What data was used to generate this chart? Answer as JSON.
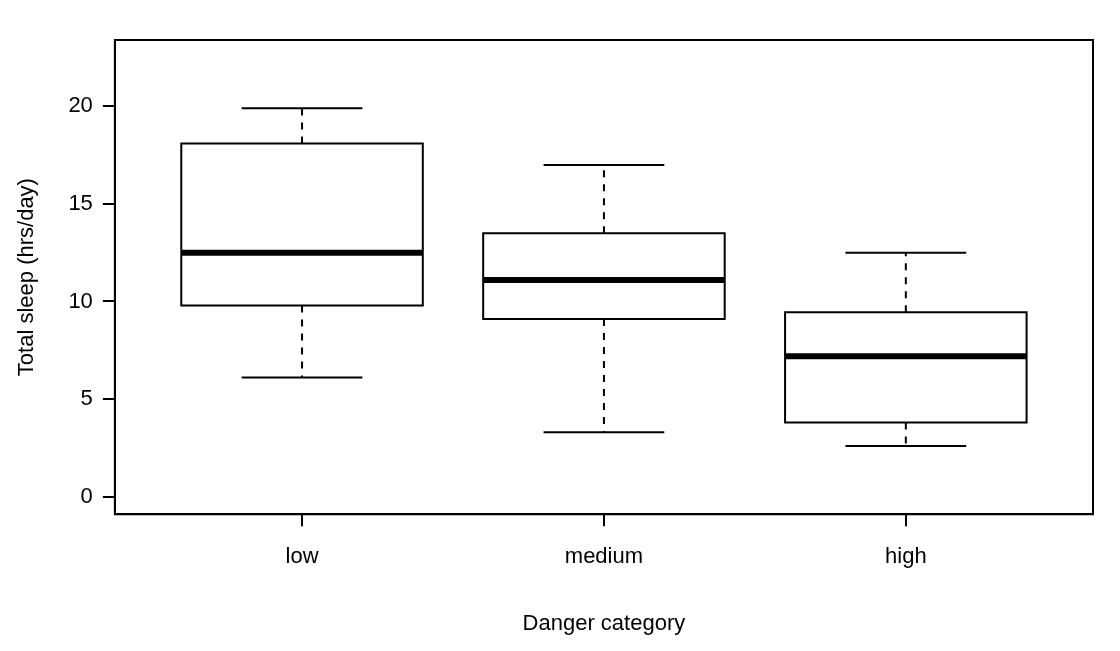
{
  "chart_data": {
    "type": "box",
    "xlabel": "Danger category",
    "ylabel": "Total sleep (hrs/day)",
    "categories": [
      "low",
      "medium",
      "high"
    ],
    "boxes": [
      {
        "low": 6.1,
        "q1": 9.8,
        "median": 12.5,
        "q3": 18.1,
        "high": 19.9
      },
      {
        "low": 3.3,
        "q1": 9.1,
        "median": 11.1,
        "q3": 13.5,
        "high": 17.0
      },
      {
        "low": 2.6,
        "q1": 3.8,
        "median": 7.2,
        "q3": 9.45,
        "high": 12.5
      }
    ],
    "ylim": [
      -0.9,
      23.4
    ],
    "yticks": [
      0,
      5,
      10,
      15,
      20
    ],
    "grid": false,
    "legend": false
  }
}
